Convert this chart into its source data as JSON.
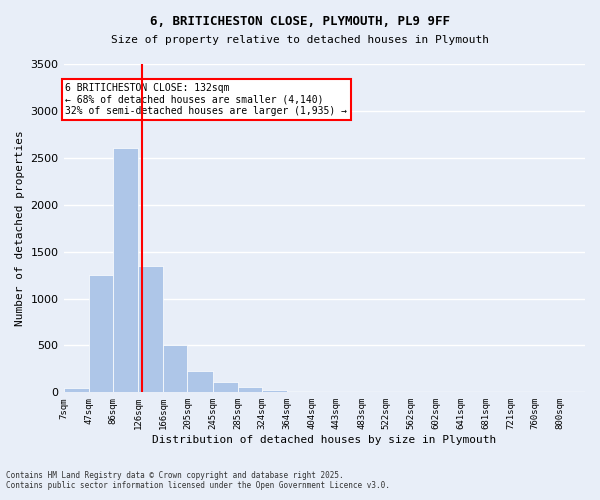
{
  "title1": "6, BRITICHESTON CLOSE, PLYMOUTH, PL9 9FF",
  "title2": "Size of property relative to detached houses in Plymouth",
  "xlabel": "Distribution of detached houses by size in Plymouth",
  "ylabel": "Number of detached properties",
  "bar_color": "#aec6e8",
  "bar_edgecolor": "#aec6e8",
  "background_color": "#e8eef8",
  "grid_color": "#ffffff",
  "vline_x": 132,
  "vline_color": "red",
  "categories": [
    "7sqm",
    "47sqm",
    "86sqm",
    "126sqm",
    "166sqm",
    "205sqm",
    "245sqm",
    "285sqm",
    "324sqm",
    "364sqm",
    "404sqm",
    "443sqm",
    "483sqm",
    "522sqm",
    "562sqm",
    "602sqm",
    "641sqm",
    "681sqm",
    "721sqm",
    "760sqm",
    "800sqm"
  ],
  "bin_edges": [
    7,
    47,
    86,
    126,
    166,
    205,
    245,
    285,
    324,
    364,
    404,
    443,
    483,
    522,
    562,
    602,
    641,
    681,
    721,
    760,
    800
  ],
  "values": [
    50,
    1250,
    2600,
    1350,
    500,
    230,
    110,
    55,
    30,
    15,
    5,
    0,
    0,
    0,
    0,
    0,
    0,
    0,
    0,
    0
  ],
  "ylim": [
    0,
    3500
  ],
  "annotation_text": "6 BRITICHESTON CLOSE: 132sqm\n← 68% of detached houses are smaller (4,140)\n32% of semi-detached houses are larger (1,935) →",
  "annotation_box_color": "white",
  "annotation_box_edgecolor": "red",
  "footer1": "Contains HM Land Registry data © Crown copyright and database right 2025.",
  "footer2": "Contains public sector information licensed under the Open Government Licence v3.0."
}
